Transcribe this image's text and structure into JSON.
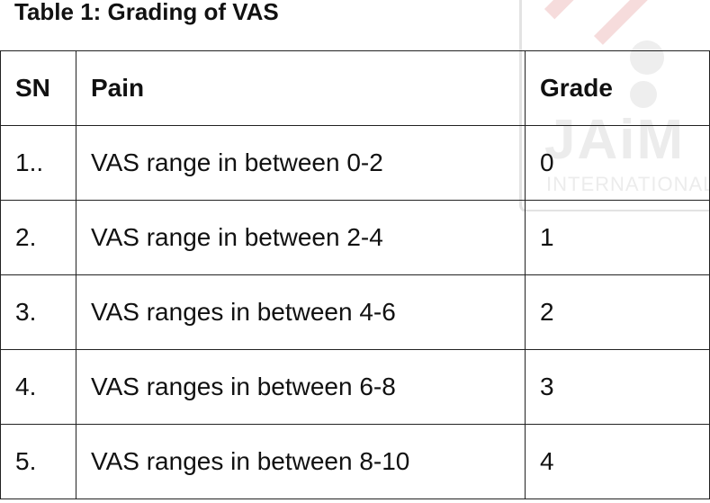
{
  "caption": "Table 1: Grading of VAS",
  "table": {
    "headers": [
      "SN",
      "Pain",
      "Grade"
    ],
    "rows": [
      [
        "1..",
        "VAS range in between 0-2",
        "0"
      ],
      [
        "2.",
        "VAS range in between 2-4",
        "1"
      ],
      [
        "3.",
        "VAS ranges in between 4-6",
        "2"
      ],
      [
        "4.",
        "VAS ranges in between 6-8",
        "3"
      ],
      [
        "5.",
        "VAS ranges in between 8-10",
        "4"
      ]
    ]
  },
  "watermark": {
    "logo": "JAiM",
    "subtitle": "INTERNATIONAL"
  }
}
